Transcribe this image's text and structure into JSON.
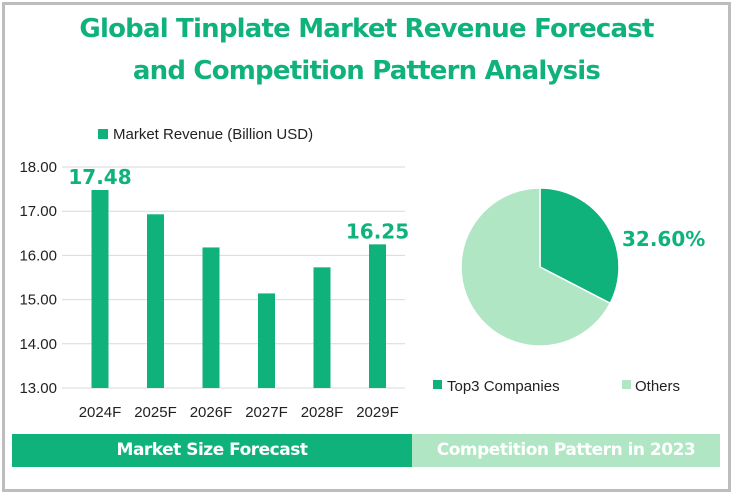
{
  "title_line1": "Global Tinplate Market Revenue Forecast",
  "title_line2": "and Competition Pattern Analysis",
  "colors": {
    "primary": "#10b27c",
    "light": "#b0e6c4",
    "grid": "#d9d9d9",
    "text": "#222222"
  },
  "chart_data": [
    {
      "type": "bar",
      "title": "Market Size Forecast",
      "legend": "Market Revenue (Billion USD)",
      "legend_position": "top",
      "categories": [
        "2024F",
        "2025F",
        "2026F",
        "2027F",
        "2028F",
        "2029F"
      ],
      "values": [
        17.48,
        16.93,
        16.18,
        15.14,
        15.73,
        16.25
      ],
      "data_labels": [
        "17.48",
        "",
        "",
        "",
        "",
        "16.25"
      ],
      "ylim": [
        13,
        18
      ],
      "yticks": [
        "13.00",
        "14.00",
        "15.00",
        "16.00",
        "17.00",
        "18.00"
      ],
      "grid": true
    },
    {
      "type": "pie",
      "title": "Competition Pattern in 2023",
      "labels": [
        "Top3 Companies",
        "Others"
      ],
      "values": [
        32.6,
        67.4
      ],
      "data_labels": [
        "32.60%",
        ""
      ],
      "legend_position": "bottom"
    }
  ]
}
